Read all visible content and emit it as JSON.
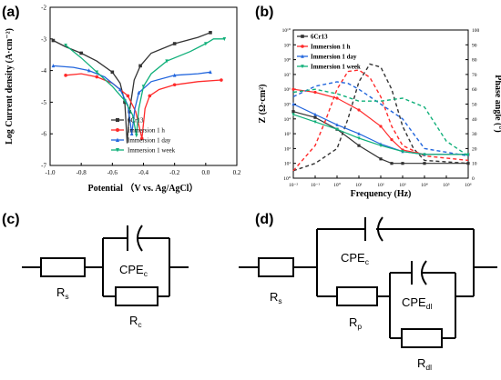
{
  "panels": {
    "a": {
      "label": "(a)"
    },
    "b": {
      "label": "(b)"
    },
    "c": {
      "label": "(c)"
    },
    "d": {
      "label": "(d)"
    }
  },
  "colors": {
    "black": "#333333",
    "red": "#ff2a2a",
    "blue": "#2266dd",
    "green": "#11b07a"
  },
  "chart_data": [
    {
      "panel": "a",
      "type": "line",
      "title": "",
      "xlabel": "Potential （V vs. Ag/AgCl）",
      "ylabel": "Log Current density (A·cm⁻²)",
      "xlim": [
        -1.0,
        0.2
      ],
      "ylim": [
        -7,
        -2
      ],
      "xticks": [
        "-1.0",
        "-0.8",
        "-0.6",
        "-0.4",
        "-0.2",
        "0.0",
        "0.2"
      ],
      "yticks": [
        "-2",
        "-3",
        "-4",
        "-5",
        "-6",
        "-7"
      ],
      "legend_position": "bottom-right",
      "series": [
        {
          "name": "6Cr13",
          "color": "#333333",
          "marker": "square",
          "points": [
            [
              -0.98,
              -3.05
            ],
            [
              -0.9,
              -3.25
            ],
            [
              -0.8,
              -3.45
            ],
            [
              -0.7,
              -3.7
            ],
            [
              -0.6,
              -4.05
            ],
            [
              -0.55,
              -4.4
            ],
            [
              -0.52,
              -5.0
            ],
            [
              -0.505,
              -6.3
            ],
            [
              -0.49,
              -5.3
            ],
            [
              -0.46,
              -4.3
            ],
            [
              -0.42,
              -3.85
            ],
            [
              -0.35,
              -3.45
            ],
            [
              -0.2,
              -3.15
            ],
            [
              -0.05,
              -2.95
            ],
            [
              0.03,
              -2.8
            ]
          ]
        },
        {
          "name": "Immersion 1 h",
          "color": "#ff2a2a",
          "marker": "circle",
          "points": [
            [
              -0.9,
              -4.15
            ],
            [
              -0.8,
              -4.1
            ],
            [
              -0.7,
              -4.2
            ],
            [
              -0.6,
              -4.4
            ],
            [
              -0.5,
              -4.8
            ],
            [
              -0.45,
              -5.3
            ],
            [
              -0.41,
              -6.15
            ],
            [
              -0.39,
              -5.2
            ],
            [
              -0.36,
              -4.8
            ],
            [
              -0.3,
              -4.6
            ],
            [
              -0.2,
              -4.45
            ],
            [
              -0.05,
              -4.35
            ],
            [
              0.1,
              -4.3
            ]
          ]
        },
        {
          "name": "Immersion 1 day",
          "color": "#2266dd",
          "marker": "triangle-up",
          "points": [
            [
              -0.98,
              -3.85
            ],
            [
              -0.85,
              -3.9
            ],
            [
              -0.75,
              -4.0
            ],
            [
              -0.65,
              -4.2
            ],
            [
              -0.55,
              -4.6
            ],
            [
              -0.5,
              -5.1
            ],
            [
              -0.475,
              -6.0
            ],
            [
              -0.455,
              -5.2
            ],
            [
              -0.43,
              -4.7
            ],
            [
              -0.35,
              -4.35
            ],
            [
              -0.2,
              -4.15
            ],
            [
              -0.05,
              -4.1
            ],
            [
              0.03,
              -4.05
            ]
          ]
        },
        {
          "name": "Immersion 1 week",
          "color": "#11b07a",
          "marker": "triangle-down",
          "points": [
            [
              -0.9,
              -3.2
            ],
            [
              -0.8,
              -3.6
            ],
            [
              -0.7,
              -4.05
            ],
            [
              -0.6,
              -4.5
            ],
            [
              -0.52,
              -4.95
            ],
            [
              -0.47,
              -5.4
            ],
            [
              -0.445,
              -6.05
            ],
            [
              -0.43,
              -5.2
            ],
            [
              -0.4,
              -4.5
            ],
            [
              -0.35,
              -4.1
            ],
            [
              -0.25,
              -3.7
            ],
            [
              -0.1,
              -3.4
            ],
            [
              0.0,
              -3.15
            ],
            [
              0.05,
              -3.0
            ],
            [
              0.12,
              -3.0
            ]
          ]
        }
      ]
    },
    {
      "panel": "b",
      "type": "line",
      "title": "",
      "xlabel": "Frequency (Hz)",
      "ylabel": "Z (Ω·cm²)",
      "y2label": "Phase angle (°)",
      "x_scale": "log",
      "y_scale": "log",
      "xticks": [
        "10⁻²",
        "10⁻¹",
        "10⁰",
        "10¹",
        "10²",
        "10³",
        "10⁴",
        "10⁵",
        "10⁶"
      ],
      "yticks": [
        "10¹⁰",
        "10⁹",
        "10⁸",
        "10⁷",
        "10⁶",
        "10⁵",
        "10⁴",
        "10³",
        "10²",
        "10¹",
        "10⁰"
      ],
      "y2ticks": [
        "100",
        "90",
        "80",
        "70",
        "60",
        "50",
        "40",
        "30",
        "20",
        "10",
        "0"
      ],
      "xlim_exp": [
        -2,
        6
      ],
      "ylim_exp": [
        0,
        10
      ],
      "y2lim": [
        0,
        100
      ],
      "legend_position": "top-left",
      "series": [
        {
          "name": "6Cr13",
          "color": "#333333",
          "marker": "square",
          "modulus_exp": [
            [
              -2,
              4.5
            ],
            [
              -1,
              4.1
            ],
            [
              0,
              3.3
            ],
            [
              1,
              2.2
            ],
            [
              2,
              1.3
            ],
            [
              2.5,
              1.0
            ],
            [
              3,
              1.0
            ],
            [
              4,
              1.0
            ],
            [
              6,
              1.0
            ]
          ],
          "phase_deg": [
            [
              -2,
              5
            ],
            [
              -1,
              10
            ],
            [
              0,
              20
            ],
            [
              0.5,
              40
            ],
            [
              1,
              65
            ],
            [
              1.5,
              77
            ],
            [
              2,
              75
            ],
            [
              2.5,
              60
            ],
            [
              3,
              35
            ],
            [
              3.5,
              20
            ],
            [
              4,
              12
            ],
            [
              6,
              10
            ]
          ]
        },
        {
          "name": "Immersion 1 h",
          "color": "#ff2a2a",
          "marker": "circle",
          "modulus_exp": [
            [
              -2,
              6.0
            ],
            [
              -1,
              5.8
            ],
            [
              0,
              5.4
            ],
            [
              1,
              4.6
            ],
            [
              2,
              3.5
            ],
            [
              2.5,
              2.6
            ],
            [
              3,
              1.9
            ],
            [
              4,
              1.6
            ],
            [
              6,
              1.6
            ]
          ],
          "phase_deg": [
            [
              -2,
              5
            ],
            [
              -1,
              22
            ],
            [
              -0.5,
              40
            ],
            [
              0,
              60
            ],
            [
              0.5,
              72
            ],
            [
              1,
              73
            ],
            [
              1.5,
              68
            ],
            [
              2,
              55
            ],
            [
              2.5,
              35
            ],
            [
              3,
              22
            ],
            [
              4,
              15
            ],
            [
              6,
              12
            ]
          ]
        },
        {
          "name": "Immersion 1 day",
          "color": "#2266dd",
          "marker": "triangle-up",
          "modulus_exp": [
            [
              -2,
              5.0
            ],
            [
              -1,
              4.3
            ],
            [
              0,
              3.6
            ],
            [
              1,
              3.0
            ],
            [
              2,
              2.3
            ],
            [
              3,
              1.8
            ],
            [
              4,
              1.6
            ],
            [
              6,
              1.6
            ]
          ],
          "phase_deg": [
            [
              -2,
              55
            ],
            [
              -1,
              62
            ],
            [
              0,
              65
            ],
            [
              0.5,
              64
            ],
            [
              1,
              60
            ],
            [
              2,
              50
            ],
            [
              3,
              40
            ],
            [
              4,
              20
            ],
            [
              6,
              15
            ]
          ]
        },
        {
          "name": "Immersion 1 week",
          "color": "#11b07a",
          "marker": "triangle-down",
          "modulus_exp": [
            [
              -2,
              4.3
            ],
            [
              -1,
              3.8
            ],
            [
              0,
              3.3
            ],
            [
              1,
              2.7
            ],
            [
              2,
              2.2
            ],
            [
              3,
              1.8
            ],
            [
              4,
              1.6
            ],
            [
              6,
              1.6
            ]
          ],
          "phase_deg": [
            [
              -2,
              58
            ],
            [
              -1,
              60
            ],
            [
              0,
              57
            ],
            [
              1,
              52
            ],
            [
              2,
              52
            ],
            [
              3,
              54
            ],
            [
              4,
              48
            ],
            [
              5,
              25
            ],
            [
              6,
              15
            ]
          ]
        }
      ]
    }
  ],
  "circuits": {
    "c": {
      "rs": {
        "main": "R",
        "sub": "s"
      },
      "cpe": {
        "main": "CPE",
        "sub": "c"
      },
      "rc": {
        "main": "R",
        "sub": "c"
      }
    },
    "d": {
      "rs": {
        "main": "R",
        "sub": "s"
      },
      "cpe_c": {
        "main": "CPE",
        "sub": "c"
      },
      "rp": {
        "main": "R",
        "sub": "p"
      },
      "cpe_dl": {
        "main": "CPE",
        "sub": "dl"
      },
      "rdl": {
        "main": "R",
        "sub": "dl"
      }
    }
  }
}
